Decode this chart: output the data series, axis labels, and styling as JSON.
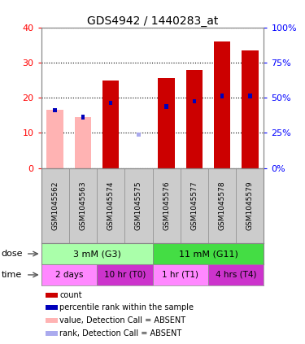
{
  "title": "GDS4942 / 1440283_at",
  "samples": [
    "GSM1045562",
    "GSM1045563",
    "GSM1045574",
    "GSM1045575",
    "GSM1045576",
    "GSM1045577",
    "GSM1045578",
    "GSM1045579"
  ],
  "count_values": [
    16.5,
    14.5,
    25.0,
    0.0,
    25.5,
    28.0,
    36.0,
    33.5
  ],
  "rank_values": [
    16.5,
    14.5,
    18.5,
    9.5,
    17.5,
    19.0,
    20.5,
    20.5
  ],
  "absent_count": [
    true,
    true,
    false,
    true,
    false,
    false,
    false,
    false
  ],
  "absent_rank": [
    false,
    false,
    false,
    true,
    false,
    false,
    false,
    false
  ],
  "left_ylim": [
    0,
    40
  ],
  "right_ylim": [
    0,
    100
  ],
  "left_yticks": [
    0,
    10,
    20,
    30,
    40
  ],
  "right_yticks": [
    0,
    25,
    50,
    75,
    100
  ],
  "bar_color_present": "#cc0000",
  "bar_color_absent": "#ffb3b3",
  "rank_color_present": "#0000bb",
  "rank_color_absent": "#aaaaee",
  "dose_groups": [
    {
      "label": "3 mM (G3)",
      "start": 0,
      "end": 4,
      "color": "#aaffaa"
    },
    {
      "label": "11 mM (G11)",
      "start": 4,
      "end": 8,
      "color": "#44dd44"
    }
  ],
  "time_groups": [
    {
      "label": "2 days",
      "start": 0,
      "end": 2,
      "color": "#ff88ff"
    },
    {
      "label": "10 hr (T0)",
      "start": 2,
      "end": 4,
      "color": "#cc33cc"
    },
    {
      "label": "1 hr (T1)",
      "start": 4,
      "end": 6,
      "color": "#ff88ff"
    },
    {
      "label": "4 hrs (T4)",
      "start": 6,
      "end": 8,
      "color": "#cc33cc"
    }
  ],
  "legend_items": [
    {
      "color": "#cc0000",
      "label": "count"
    },
    {
      "color": "#0000bb",
      "label": "percentile rank within the sample"
    },
    {
      "color": "#ffb3b3",
      "label": "value, Detection Call = ABSENT"
    },
    {
      "color": "#aaaaee",
      "label": "rank, Detection Call = ABSENT"
    }
  ]
}
